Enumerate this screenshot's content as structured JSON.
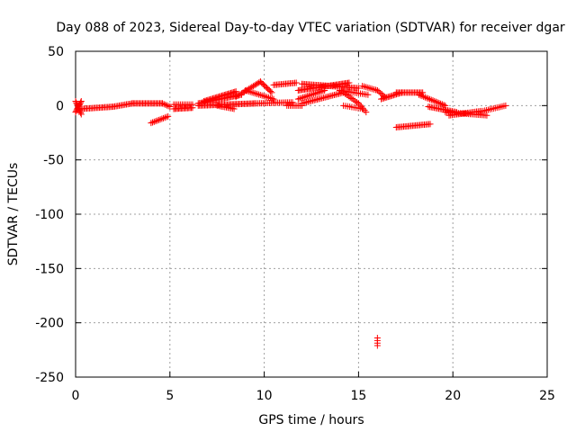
{
  "colors": {
    "series": "#ff0000",
    "grid": "#a0a0a0",
    "axis": "#000000",
    "background": "#ffffff"
  },
  "chart_data": {
    "type": "scatter",
    "title": "Day 088 of 2023, Sidereal Day-to-day VTEC variation (SDTVAR) for receiver dgar",
    "xlabel": "GPS time / hours",
    "ylabel": "SDTVAR / TECUs",
    "xlim": [
      0,
      25
    ],
    "ylim": [
      -250,
      50
    ],
    "xticks": [
      0,
      5,
      10,
      15,
      20,
      25
    ],
    "yticks": [
      -250,
      -200,
      -150,
      -100,
      -50,
      0,
      50
    ],
    "grid": true,
    "marker": "plus",
    "segments": [
      {
        "x0": 0.0,
        "x1": 0.3,
        "y0": -6,
        "y1": 4,
        "n": 10
      },
      {
        "x0": 0.0,
        "x1": 0.3,
        "y0": 4,
        "y1": -8,
        "n": 10
      },
      {
        "x0": 0.3,
        "x1": 2.0,
        "y0": -3,
        "y1": -1,
        "n": 24
      },
      {
        "x0": 2.0,
        "x1": 3.0,
        "y0": -1,
        "y1": 2,
        "n": 14
      },
      {
        "x0": 3.0,
        "x1": 4.6,
        "y0": 2,
        "y1": 2,
        "n": 24
      },
      {
        "x0": 4.6,
        "x1": 5.0,
        "y0": 2,
        "y1": -1,
        "n": 6
      },
      {
        "x0": 4.0,
        "x1": 4.9,
        "y0": -16,
        "y1": -10,
        "n": 12
      },
      {
        "x0": 5.2,
        "x1": 6.2,
        "y0": -3,
        "y1": -2,
        "n": 16
      },
      {
        "x0": 5.2,
        "x1": 6.2,
        "y0": 1,
        "y1": 1,
        "n": 12
      },
      {
        "x0": 6.5,
        "x1": 9.5,
        "y0": 0,
        "y1": 2,
        "n": 44
      },
      {
        "x0": 6.5,
        "x1": 8.8,
        "y0": 2,
        "y1": 10,
        "n": 34
      },
      {
        "x0": 6.8,
        "x1": 8.5,
        "y0": 4,
        "y1": 13,
        "n": 26
      },
      {
        "x0": 7.5,
        "x1": 8.4,
        "y0": 0,
        "y1": -3,
        "n": 12
      },
      {
        "x0": 8.5,
        "x1": 9.8,
        "y0": 8,
        "y1": 22,
        "n": 18
      },
      {
        "x0": 9.8,
        "x1": 10.4,
        "y0": 22,
        "y1": 12,
        "n": 10
      },
      {
        "x0": 9.0,
        "x1": 10.5,
        "y0": 14,
        "y1": 6,
        "n": 18
      },
      {
        "x0": 9.5,
        "x1": 11.5,
        "y0": 2,
        "y1": 3,
        "n": 24
      },
      {
        "x0": 10.5,
        "x1": 11.7,
        "y0": 19,
        "y1": 21,
        "n": 16
      },
      {
        "x0": 11.2,
        "x1": 12.0,
        "y0": 0,
        "y1": 0,
        "n": 10
      },
      {
        "x0": 11.8,
        "x1": 14.5,
        "y0": 14,
        "y1": 21,
        "n": 40
      },
      {
        "x0": 12.0,
        "x1": 15.0,
        "y0": 20,
        "y1": 16,
        "n": 40
      },
      {
        "x0": 11.8,
        "x1": 13.2,
        "y0": 6,
        "y1": 14,
        "n": 18
      },
      {
        "x0": 12.0,
        "x1": 14.2,
        "y0": 2,
        "y1": 12,
        "n": 28
      },
      {
        "x0": 14.0,
        "x1": 15.5,
        "y0": 14,
        "y1": 10,
        "n": 16
      },
      {
        "x0": 14.2,
        "x1": 15.0,
        "y0": 12,
        "y1": 2,
        "n": 10
      },
      {
        "x0": 15.0,
        "x1": 15.4,
        "y0": 2,
        "y1": -6,
        "n": 6
      },
      {
        "x0": 14.2,
        "x1": 15.2,
        "y0": 0,
        "y1": -3,
        "n": 10
      },
      {
        "x0": 15.2,
        "x1": 16.0,
        "y0": 18,
        "y1": 14,
        "n": 10
      },
      {
        "x0": 16.0,
        "x1": 16.4,
        "y0": 14,
        "y1": 8,
        "n": 6
      },
      {
        "x0": 16.2,
        "x1": 17.3,
        "y0": 6,
        "y1": 12,
        "n": 16
      },
      {
        "x0": 17.0,
        "x1": 18.4,
        "y0": 12,
        "y1": 12,
        "n": 20
      },
      {
        "x0": 18.2,
        "x1": 19.6,
        "y0": 10,
        "y1": 0,
        "n": 18
      },
      {
        "x0": 17.0,
        "x1": 18.8,
        "y0": -20,
        "y1": -17,
        "n": 24
      },
      {
        "x0": 18.7,
        "x1": 20.2,
        "y0": -1,
        "y1": -6,
        "n": 20
      },
      {
        "x0": 19.6,
        "x1": 21.8,
        "y0": -6,
        "y1": -9,
        "n": 26
      },
      {
        "x0": 19.8,
        "x1": 21.5,
        "y0": -9,
        "y1": -5,
        "n": 22
      },
      {
        "x0": 21.6,
        "x1": 22.8,
        "y0": -5,
        "y1": 0,
        "n": 14
      },
      {
        "x0": 16.0,
        "x1": 16.0,
        "y0": -221,
        "y1": -214,
        "n": 4
      }
    ]
  }
}
